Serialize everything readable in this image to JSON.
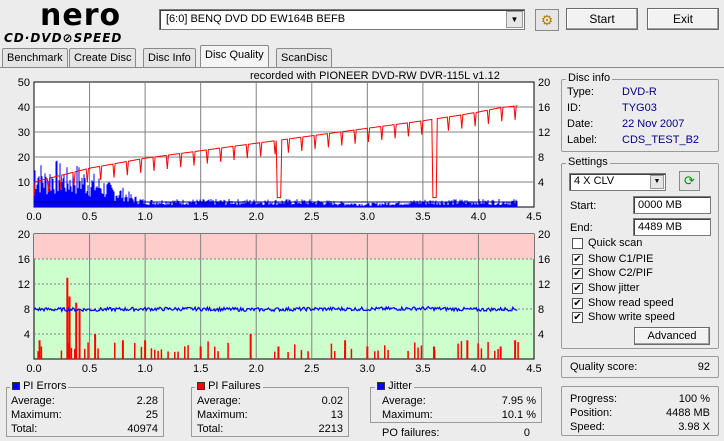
{
  "app": {
    "logo_main": "nero",
    "logo_sub": "CD·DVD⊘SPEED"
  },
  "toolbar": {
    "drive": "[6:0]  BENQ DVD DD EW164B BEFB",
    "start_label": "Start",
    "exit_label": "Exit"
  },
  "tabs": [
    "Benchmark",
    "Create Disc",
    "Disc Info",
    "Disc Quality",
    "ScanDisc"
  ],
  "active_tab": "Disc Quality",
  "chart_title": "recorded with PIONEER DVD-RW  DVR-115L v1.12",
  "chart_data": [
    {
      "type": "line",
      "title": "recorded with PIONEER DVD-RW  DVR-115L v1.12",
      "xlim": [
        0,
        4.5
      ],
      "ylim_left": [
        0,
        50
      ],
      "ylim_right": [
        0,
        20
      ],
      "x_ticks": [
        "0.0",
        "0.5",
        "1.0",
        "1.5",
        "2.0",
        "2.5",
        "3.0",
        "3.5",
        "4.0",
        "4.5"
      ],
      "y_ticks_left": [
        "50",
        "40",
        "30",
        "20",
        "10"
      ],
      "y_ticks_right": [
        "20",
        "16",
        "12",
        "8",
        "4"
      ],
      "series": [
        {
          "name": "PI Errors",
          "color": "#0000ff",
          "x": [
            0.0,
            0.1,
            0.2,
            0.3,
            0.4,
            0.5,
            0.6,
            0.7,
            0.8,
            0.9,
            1.0,
            1.5,
            2.0,
            2.5,
            3.0,
            3.5,
            4.0,
            4.35
          ],
          "y": [
            14,
            10,
            12,
            10,
            11,
            9,
            8,
            6,
            5,
            3,
            2,
            2,
            2,
            2,
            1,
            2,
            2,
            2
          ]
        },
        {
          "name": "Read speed",
          "color": "#ff0000",
          "x": [
            0.0,
            0.5,
            1.0,
            1.5,
            2.0,
            2.5,
            3.0,
            3.5,
            3.8,
            4.0,
            4.2,
            4.35
          ],
          "y": [
            4,
            6.2,
            7.8,
            9,
            10.2,
            11.4,
            12.6,
            13.8,
            14.6,
            15.2,
            15.9,
            16.2
          ]
        }
      ]
    },
    {
      "type": "bar",
      "xlim": [
        0,
        4.5
      ],
      "ylim": [
        0,
        20
      ],
      "x_ticks": [
        "0.0",
        "0.5",
        "1.0",
        "1.5",
        "2.0",
        "2.5",
        "3.0",
        "3.5",
        "4.0",
        "4.5"
      ],
      "y_ticks": [
        "20",
        "16",
        "12",
        "8",
        "4"
      ],
      "series": [
        {
          "name": "PI Failures",
          "color": "#ff0000",
          "x": [
            0.05,
            0.3,
            0.32,
            0.38,
            0.41,
            0.55,
            0.8,
            1.0,
            1.5,
            1.95,
            2.2,
            2.8,
            3.0,
            3.6,
            3.9,
            4.2,
            4.33
          ],
          "y": [
            3,
            13,
            10,
            9,
            8,
            4,
            3,
            3,
            2,
            4,
            2,
            3,
            2,
            2,
            3,
            2,
            3
          ]
        },
        {
          "name": "Jitter",
          "color": "#0000ff",
          "x": [
            0.0,
            0.5,
            1.0,
            1.5,
            2.0,
            2.5,
            3.0,
            3.5,
            4.0,
            4.35
          ],
          "y": [
            7.95,
            7.9,
            8.0,
            8.0,
            7.9,
            8.0,
            8.0,
            8.1,
            7.9,
            8.0
          ]
        }
      ]
    }
  ],
  "disc_info": {
    "title": "Disc info",
    "type_label": "Type:",
    "type": "DVD-R",
    "id_label": "ID:",
    "id": "TYG03",
    "date_label": "Date:",
    "date": "22 Nov 2007",
    "label_label": "Label:",
    "label": "CDS_TEST_B2"
  },
  "settings": {
    "title": "Settings",
    "speed": "4 X CLV",
    "start_label": "Start:",
    "start_value": "0000 MB",
    "end_label": "End:",
    "end_value": "4489 MB",
    "checks": [
      {
        "label": "Quick scan",
        "checked": false
      },
      {
        "label": "Show C1/PIE",
        "checked": true
      },
      {
        "label": "Show C2/PIF",
        "checked": true
      },
      {
        "label": "Show jitter",
        "checked": true
      },
      {
        "label": "Show read speed",
        "checked": true
      },
      {
        "label": "Show write speed",
        "checked": true
      }
    ],
    "advanced_label": "Advanced"
  },
  "quality": {
    "label": "Quality score:",
    "value": "92"
  },
  "progress": {
    "progress_label": "Progress:",
    "progress": "100 %",
    "position_label": "Position:",
    "position": "4488 MB",
    "speed_label": "Speed:",
    "speed": "3.98 X"
  },
  "pi_errors": {
    "title": "PI Errors",
    "color": "#0000ff",
    "avg_label": "Average:",
    "avg": "2.28",
    "max_label": "Maximum:",
    "max": "25",
    "total_label": "Total:",
    "total": "40974"
  },
  "pi_failures": {
    "title": "PI Failures",
    "color": "#ff0000",
    "avg_label": "Average:",
    "avg": "0.02",
    "max_label": "Maximum:",
    "max": "13",
    "total_label": "Total:",
    "total": "2213"
  },
  "jitter": {
    "title": "Jitter",
    "color": "#0000ff",
    "avg_label": "Average:",
    "avg": "7.95 %",
    "max_label": "Maximum:",
    "max": "10.1 %",
    "po_label": "PO failures:",
    "po": "0"
  }
}
